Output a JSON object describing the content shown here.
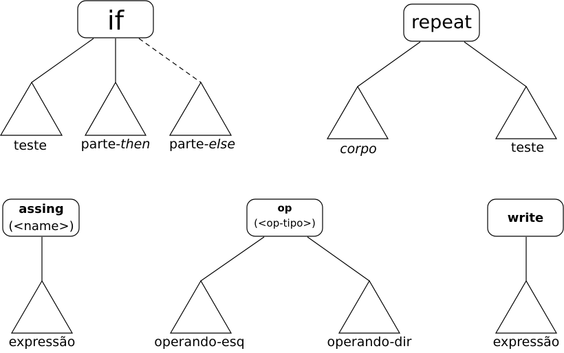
{
  "trees": {
    "if": {
      "label": "if",
      "children": {
        "teste": "teste",
        "then_prefix": "parte-",
        "then_italic": "then",
        "else_prefix": "parte-",
        "else_italic": "else"
      }
    },
    "repeat": {
      "label": "repeat",
      "children": {
        "corpo": "corpo",
        "teste": "teste"
      }
    },
    "assing": {
      "label": "assing",
      "sublabel": "(<name>)",
      "children": {
        "expressao": "expressão"
      }
    },
    "op": {
      "label": "op",
      "sublabel": "(<op-tipo>)",
      "children": {
        "operando_esq": "operando-esq",
        "operando_dir": "operando-dir"
      }
    },
    "write": {
      "label": "write",
      "children": {
        "expressao": "expressão"
      }
    }
  }
}
